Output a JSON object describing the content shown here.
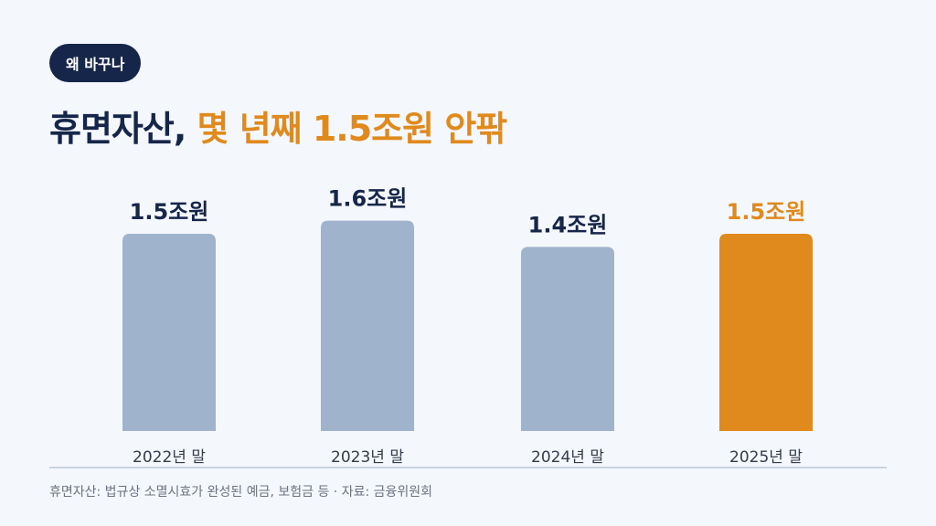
{
  "badge": {
    "label": "왜 바꾸나"
  },
  "title": {
    "part1": "휴면자산, ",
    "part2": "몇 년째 1.5조원 안팎"
  },
  "footnote": "휴면자산: 법규상 소멸시효가 완성된 예금, 보험금 등 · 자료: 금융위원회",
  "colors": {
    "navy": "#16264a",
    "accent": "#e08a1e",
    "bar": "#a0b3cc",
    "axis": "#c9d2df",
    "text": "#333d4b"
  },
  "chart_data": {
    "type": "bar",
    "categories": [
      "2022년 말",
      "2023년 말",
      "2024년 말",
      "2025년 말"
    ],
    "values": [
      1.5,
      1.6,
      1.4,
      1.5
    ],
    "data_labels": [
      "1.5조원",
      "1.6조원",
      "1.4조원",
      "1.5조원"
    ],
    "highlight_index": 3,
    "title": "",
    "xlabel": "",
    "ylabel": "",
    "grid": false
  }
}
